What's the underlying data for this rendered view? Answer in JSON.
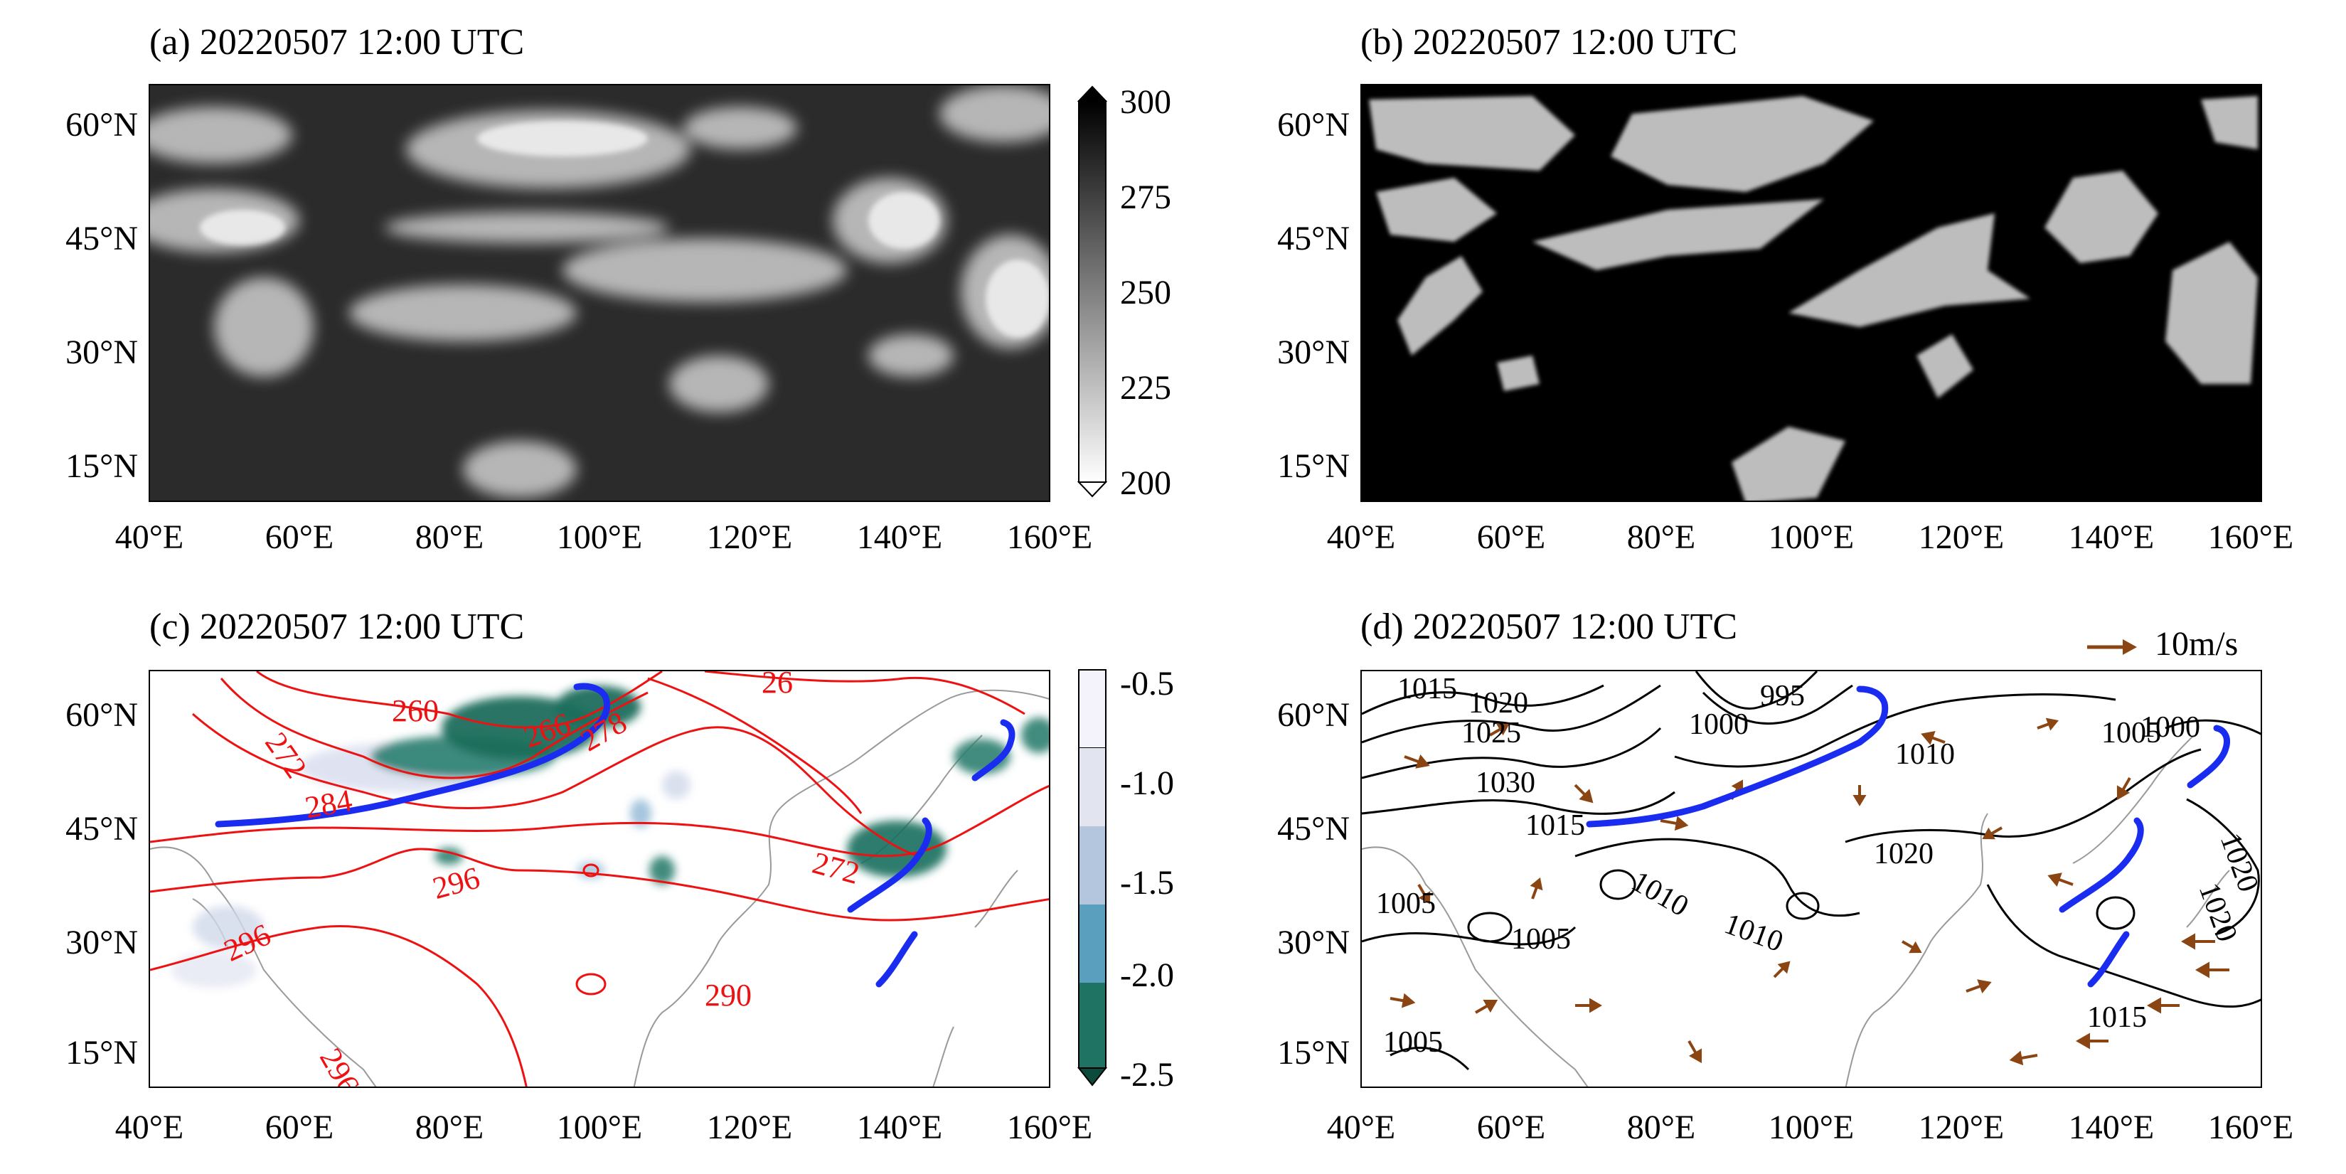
{
  "panels": {
    "a": {
      "title": "(a) 20220507 12:00 UTC"
    },
    "b": {
      "title": "(b) 20220507 12:00 UTC"
    },
    "c": {
      "title": "(c) 20220507 12:00 UTC"
    },
    "d": {
      "title": "(d) 20220507 12:00 UTC"
    }
  },
  "axes": {
    "lat_labels": [
      "60°N",
      "45°N",
      "30°N",
      "15°N"
    ],
    "lon_labels": [
      "40°E",
      "60°E",
      "80°E",
      "100°E",
      "120°E",
      "140°E",
      "160°E"
    ]
  },
  "colorbar_a": {
    "labels": [
      "300",
      "275",
      "250",
      "225",
      "200"
    ],
    "colors": [
      "#000000",
      "#ffffff"
    ]
  },
  "colorbar_c": {
    "labels": [
      "-0.5",
      "-1.0",
      "-1.5",
      "-2.0",
      "-2.5"
    ],
    "colors": [
      "#f4f2fa",
      "#d0d8ea",
      "#8fb7d4",
      "#3f9aa6",
      "#1b6e5c",
      "#0b4a3c"
    ]
  },
  "contours_c": {
    "color": "#ee1111",
    "labels": [
      "260",
      "272",
      "266",
      "284",
      "272",
      "296",
      "296",
      "290",
      "296",
      "278",
      "26"
    ]
  },
  "contours_d": {
    "color": "#000000",
    "labels": [
      "1015",
      "1020",
      "1025",
      "1030",
      "995",
      "1000",
      "1010",
      "1015",
      "1010",
      "1010",
      "1020",
      "1005",
      "1005",
      "1000",
      "1005",
      "1020",
      "1020",
      "1015",
      "1005"
    ]
  },
  "wind_legend": {
    "label": "10m/s",
    "color": "#8b4513"
  },
  "front_color": "#1a2cf0"
}
